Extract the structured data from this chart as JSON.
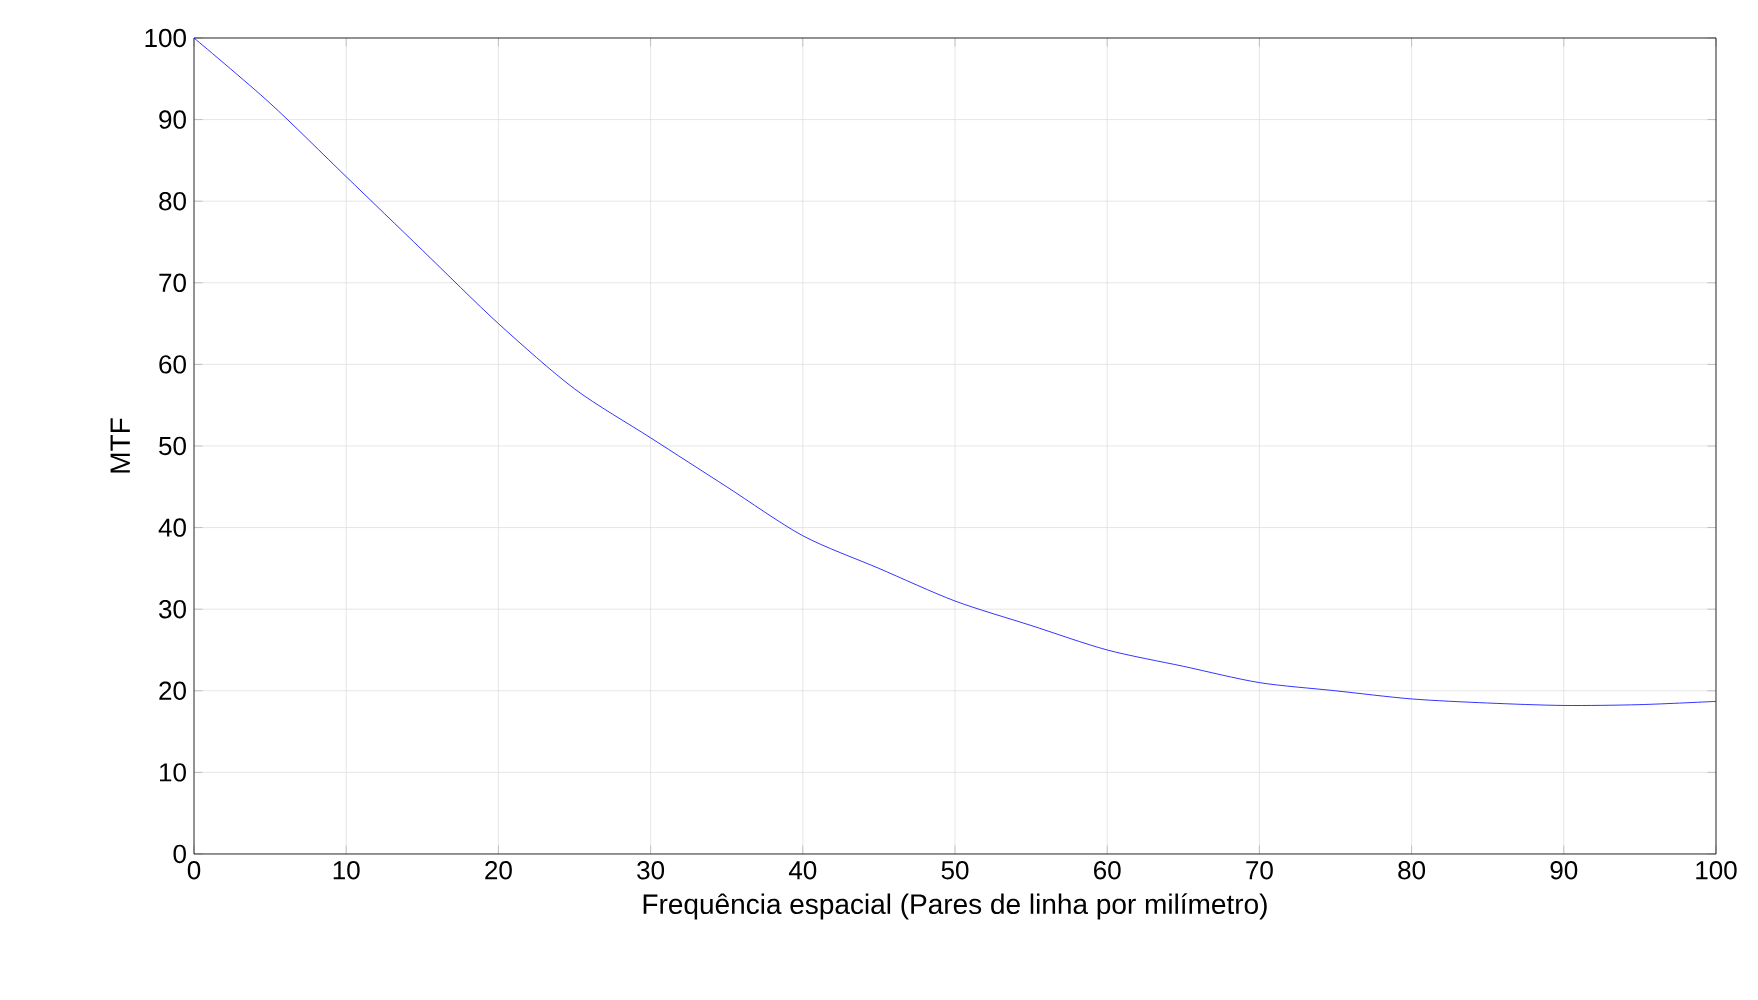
{
  "chart_data": {
    "type": "line",
    "xlabel": "Frequência espacial (Pares de linha por milímetro)",
    "ylabel": "MTF",
    "x": [
      0,
      5,
      10,
      15,
      20,
      25,
      30,
      35,
      40,
      45,
      50,
      55,
      60,
      65,
      70,
      75,
      80,
      85,
      90,
      95,
      100
    ],
    "series": [
      {
        "color": "#0000ff",
        "values": [
          100,
          92,
          83,
          74,
          65,
          57,
          51,
          45,
          39,
          35,
          31,
          28,
          25,
          23,
          21,
          20,
          19,
          18.5,
          18.2,
          18.3,
          18.7
        ]
      }
    ],
    "xlim": [
      0,
      100
    ],
    "ylim": [
      0,
      100
    ],
    "xticks": [
      0,
      10,
      20,
      30,
      40,
      50,
      60,
      70,
      80,
      90,
      100
    ],
    "yticks": [
      0,
      10,
      20,
      30,
      40,
      50,
      60,
      70,
      80,
      90,
      100
    ],
    "grid": true,
    "marker": "none",
    "line_style": "solid"
  }
}
